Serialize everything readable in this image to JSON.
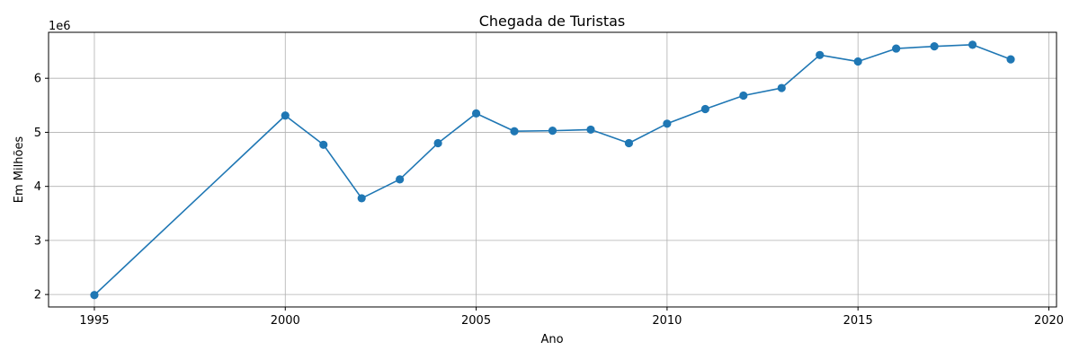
{
  "chart_data": {
    "type": "line",
    "title": "Chegada de Turistas",
    "xlabel": "Ano",
    "ylabel": "Em Milhões",
    "y_offset_text": "1e6",
    "xlim": [
      1993.8,
      2020.2
    ],
    "ylim": [
      1770000,
      6850000
    ],
    "xticks": [
      1995,
      2000,
      2005,
      2010,
      2015,
      2020
    ],
    "yticks": [
      2000000,
      3000000,
      4000000,
      5000000,
      6000000
    ],
    "ytick_labels": [
      "2",
      "3",
      "4",
      "5",
      "6"
    ],
    "grid": true,
    "marker": "circle",
    "colors": {
      "line": "#1f77b4",
      "grid": "#b0b0b0"
    },
    "series": [
      {
        "x": [
          1995,
          2000,
          2001,
          2002,
          2003,
          2004,
          2005,
          2006,
          2007,
          2008,
          2009,
          2010,
          2011,
          2012,
          2013,
          2014,
          2015,
          2016,
          2017,
          2018,
          2019
        ],
        "values": [
          1990000,
          5310000,
          4770000,
          3780000,
          4130000,
          4800000,
          5350000,
          5020000,
          5030000,
          5050000,
          4800000,
          5160000,
          5430000,
          5680000,
          5820000,
          6430000,
          6310000,
          6550000,
          6590000,
          6620000,
          6350000
        ]
      }
    ]
  }
}
